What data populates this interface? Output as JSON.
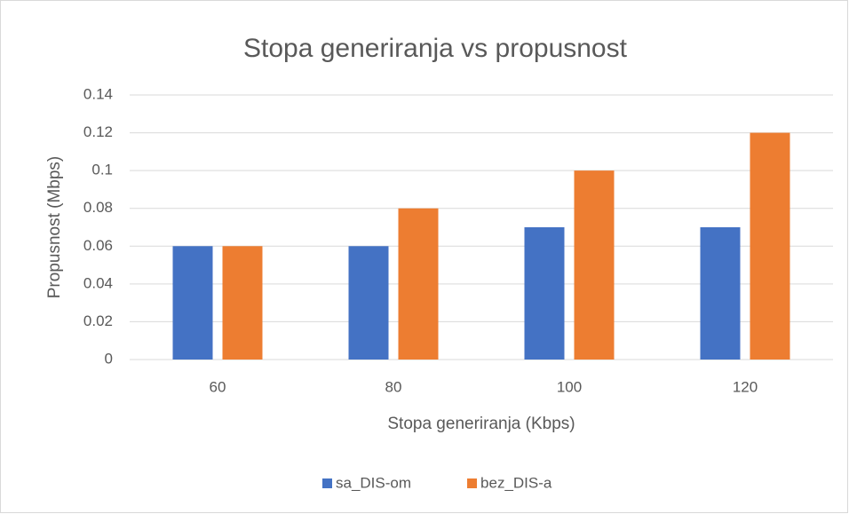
{
  "chart_data": {
    "type": "bar",
    "title": "Stopa generiranja vs propusnost",
    "x_label": "Stopa generiranja (Kbps)",
    "y_label": "Propusnost (Mbps)",
    "categories": [
      "60",
      "80",
      "100",
      "120"
    ],
    "series": [
      {
        "name": "sa_DIS-om",
        "color": "#4472c4",
        "values": [
          0.06,
          0.06,
          0.07,
          0.07
        ]
      },
      {
        "name": "bez_DIS-a",
        "color": "#ed7d31",
        "values": [
          0.06,
          0.08,
          0.1,
          0.12
        ]
      }
    ],
    "ylim": [
      0,
      0.14
    ],
    "yticks": [
      0,
      0.02,
      0.04,
      0.06,
      0.08,
      0.1,
      0.12,
      0.14
    ],
    "grid": true,
    "legend": "bottom"
  }
}
